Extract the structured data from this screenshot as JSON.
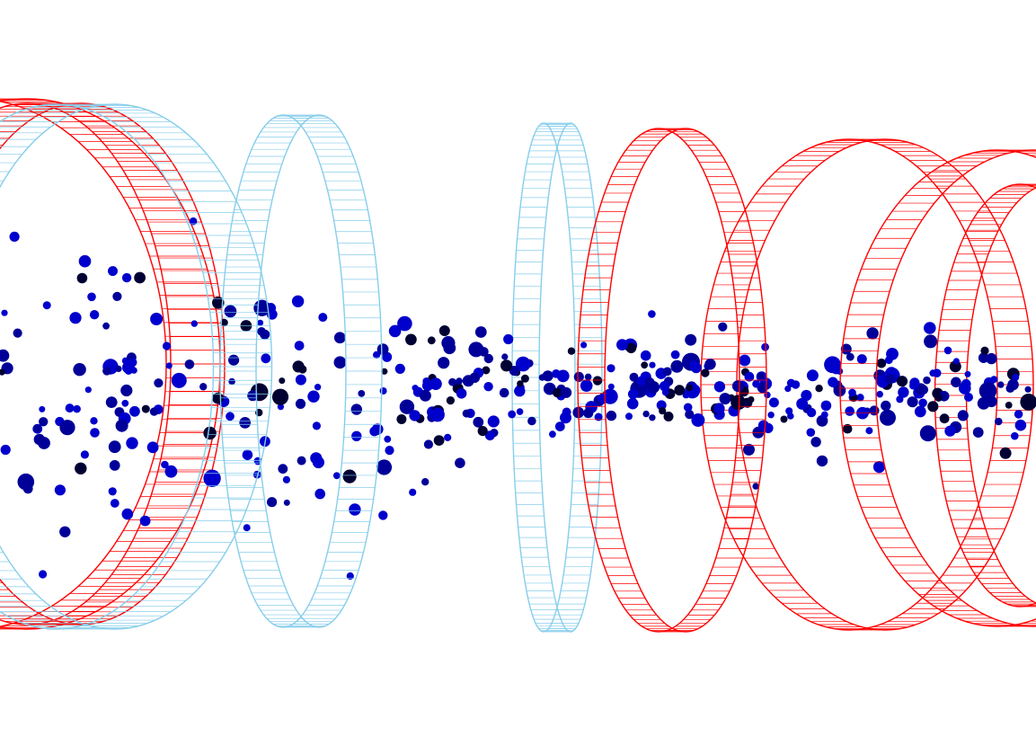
{
  "scene": {
    "background": "#ffffff",
    "colors": {
      "red_ring": "#ff0000",
      "blue_ring": "#87ceeb",
      "particle_bright": "#0000cc",
      "particle_mid": "#000099",
      "particle_dark": "#000033"
    },
    "rings": [
      {
        "color": "red_ring"
      },
      {
        "color": "blue_ring"
      },
      {
        "color": "red_ring"
      },
      {
        "color": "blue_ring"
      },
      {
        "color": "blue_ring"
      },
      {
        "color": "red_ring"
      },
      {
        "color": "red_ring"
      },
      {
        "color": "red_ring"
      },
      {
        "color": "red_ring"
      }
    ]
  }
}
